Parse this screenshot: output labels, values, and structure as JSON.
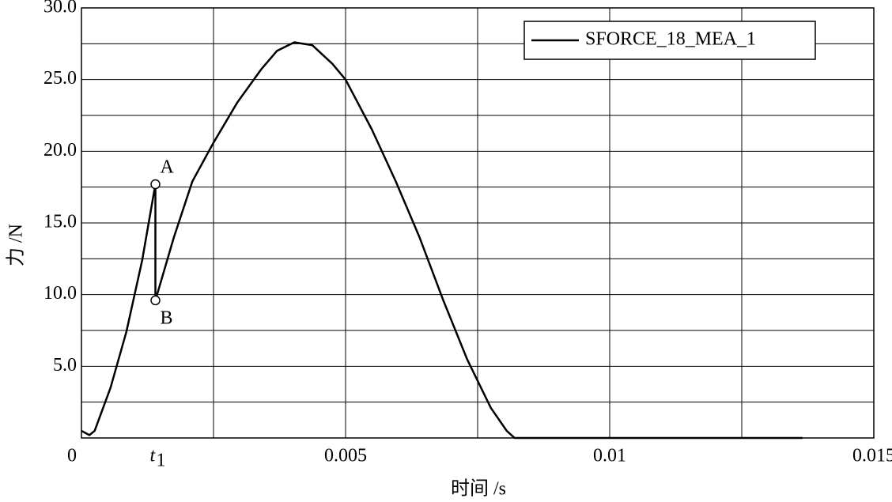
{
  "chart_data": {
    "type": "line",
    "xlabel": "时间 /s",
    "ylabel": "力 /N",
    "x": [
      0,
      0.00015,
      0.00025,
      0.00055,
      0.00085,
      0.00115,
      0.0014,
      0.0014,
      0.00175,
      0.0021,
      0.0025,
      0.00295,
      0.0034,
      0.0037,
      0.00403,
      0.00437,
      0.00475,
      0.005,
      0.0055,
      0.00595,
      0.0064,
      0.00685,
      0.0073,
      0.00775,
      0.00805,
      0.0082,
      0.01365
    ],
    "series": [
      {
        "name": "SFORCE_18_MEA_1",
        "color": "#000000",
        "values": [
          0.5,
          0.2,
          0.5,
          3.5,
          7.4,
          12.4,
          17.7,
          9.6,
          14,
          17.9,
          20.6,
          23.4,
          25.7,
          27,
          27.6,
          27.4,
          26.1,
          25,
          21.5,
          17.9,
          14,
          9.6,
          5.5,
          2.1,
          0.5,
          0,
          0
        ]
      }
    ],
    "xlim": [
      0,
      0.015
    ],
    "ylim": [
      0,
      30
    ],
    "xticks": [
      0,
      0.005,
      0.01,
      0.015
    ],
    "yticks": [
      {
        "value": 5,
        "label": "5.0"
      },
      {
        "value": 10,
        "label": "10.0"
      },
      {
        "value": 15,
        "label": "15.0"
      },
      {
        "value": 20,
        "label": "20.0"
      },
      {
        "value": 25,
        "label": "25.0"
      },
      {
        "value": 30,
        "label": "30.0"
      }
    ],
    "minor_xticks": [
      0.0025,
      0.0075,
      0.0125
    ],
    "minor_yticks": [
      2.5,
      7.5,
      12.5,
      17.5,
      22.5,
      27.5
    ],
    "grid": true,
    "legend": "upper right",
    "points": [
      {
        "label": "A",
        "x": 0.0014,
        "y": 17.7
      },
      {
        "label": "B",
        "x": 0.0014,
        "y": 9.6
      }
    ],
    "xmarker": {
      "text": "t",
      "sub": "1",
      "x": 0.0014
    }
  }
}
